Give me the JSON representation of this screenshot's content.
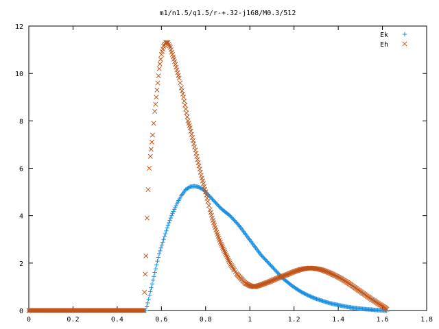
{
  "chart_data": {
    "type": "scatter",
    "title": "m1/n1.5/q1.5/r-+.32-j168/M0.3/512",
    "xlabel": "",
    "ylabel": "",
    "xlim": [
      0,
      1.8
    ],
    "ylim": [
      0,
      12
    ],
    "x_ticks": [
      "0",
      "0.2",
      "0.4",
      "0.6",
      "0.8",
      "1",
      "1.2",
      "1.4",
      "1.6",
      "1.8"
    ],
    "y_ticks": [
      "0",
      "2",
      "4",
      "6",
      "8",
      "10",
      "12"
    ],
    "grid": false,
    "legend_position": "top-right",
    "series": [
      {
        "name": "Ek",
        "marker": "plus",
        "color": "#1a8fe0",
        "points": [
          [
            0.0,
            0
          ],
          [
            0.1,
            0
          ],
          [
            0.2,
            0
          ],
          [
            0.3,
            0
          ],
          [
            0.4,
            0
          ],
          [
            0.5,
            0
          ],
          [
            0.53,
            0
          ],
          [
            0.55,
            0.8
          ],
          [
            0.57,
            1.6
          ],
          [
            0.59,
            2.4
          ],
          [
            0.61,
            3.0
          ],
          [
            0.63,
            3.6
          ],
          [
            0.65,
            4.1
          ],
          [
            0.67,
            4.5
          ],
          [
            0.69,
            4.85
          ],
          [
            0.71,
            5.1
          ],
          [
            0.73,
            5.22
          ],
          [
            0.75,
            5.25
          ],
          [
            0.77,
            5.2
          ],
          [
            0.79,
            5.1
          ],
          [
            0.81,
            4.9
          ],
          [
            0.83,
            4.7
          ],
          [
            0.85,
            4.5
          ],
          [
            0.87,
            4.3
          ],
          [
            0.89,
            4.15
          ],
          [
            0.91,
            4.0
          ],
          [
            0.93,
            3.8
          ],
          [
            0.95,
            3.6
          ],
          [
            0.97,
            3.35
          ],
          [
            0.99,
            3.1
          ],
          [
            1.01,
            2.85
          ],
          [
            1.03,
            2.6
          ],
          [
            1.05,
            2.35
          ],
          [
            1.07,
            2.15
          ],
          [
            1.09,
            1.95
          ],
          [
            1.11,
            1.75
          ],
          [
            1.13,
            1.55
          ],
          [
            1.15,
            1.35
          ],
          [
            1.17,
            1.2
          ],
          [
            1.19,
            1.05
          ],
          [
            1.21,
            0.92
          ],
          [
            1.23,
            0.8
          ],
          [
            1.25,
            0.7
          ],
          [
            1.27,
            0.61
          ],
          [
            1.29,
            0.53
          ],
          [
            1.31,
            0.46
          ],
          [
            1.33,
            0.4
          ],
          [
            1.35,
            0.34
          ],
          [
            1.37,
            0.29
          ],
          [
            1.39,
            0.25
          ],
          [
            1.41,
            0.21
          ],
          [
            1.43,
            0.17
          ],
          [
            1.45,
            0.14
          ],
          [
            1.47,
            0.11
          ],
          [
            1.49,
            0.09
          ],
          [
            1.51,
            0.07
          ],
          [
            1.53,
            0.05
          ],
          [
            1.55,
            0.04
          ],
          [
            1.57,
            0.02
          ],
          [
            1.59,
            0.01
          ],
          [
            1.61,
            0.0
          ],
          [
            1.62,
            0.0
          ]
        ]
      },
      {
        "name": "Eh",
        "marker": "cross",
        "color": "#c0541a",
        "points": [
          [
            0.0,
            0
          ],
          [
            0.1,
            0
          ],
          [
            0.2,
            0
          ],
          [
            0.3,
            0
          ],
          [
            0.4,
            0
          ],
          [
            0.5,
            0
          ],
          [
            0.52,
            0
          ],
          [
            0.53,
            2.3
          ],
          [
            0.535,
            3.9
          ],
          [
            0.54,
            5.1
          ],
          [
            0.545,
            6.0
          ],
          [
            0.55,
            6.5
          ],
          [
            0.56,
            7.4
          ],
          [
            0.57,
            8.4
          ],
          [
            0.58,
            9.3
          ],
          [
            0.59,
            10.2
          ],
          [
            0.6,
            10.8
          ],
          [
            0.61,
            11.15
          ],
          [
            0.62,
            11.3
          ],
          [
            0.63,
            11.3
          ],
          [
            0.64,
            11.1
          ],
          [
            0.65,
            10.8
          ],
          [
            0.66,
            10.5
          ],
          [
            0.67,
            10.15
          ],
          [
            0.68,
            9.8
          ],
          [
            0.69,
            9.4
          ],
          [
            0.7,
            9.0
          ],
          [
            0.71,
            8.5
          ],
          [
            0.72,
            8.0
          ],
          [
            0.73,
            7.7
          ],
          [
            0.74,
            7.3
          ],
          [
            0.75,
            6.9
          ],
          [
            0.76,
            6.5
          ],
          [
            0.77,
            6.1
          ],
          [
            0.78,
            5.7
          ],
          [
            0.79,
            5.35
          ],
          [
            0.8,
            5.0
          ],
          [
            0.81,
            4.6
          ],
          [
            0.82,
            4.25
          ],
          [
            0.83,
            3.9
          ],
          [
            0.84,
            3.6
          ],
          [
            0.85,
            3.3
          ],
          [
            0.86,
            3.05
          ],
          [
            0.87,
            2.8
          ],
          [
            0.88,
            2.6
          ],
          [
            0.89,
            2.4
          ],
          [
            0.9,
            2.2
          ],
          [
            0.91,
            2.0
          ],
          [
            0.92,
            1.85
          ],
          [
            0.93,
            1.7
          ],
          [
            0.94,
            1.55
          ],
          [
            0.95,
            1.45
          ],
          [
            0.96,
            1.35
          ],
          [
            0.97,
            1.25
          ],
          [
            0.98,
            1.15
          ],
          [
            0.99,
            1.1
          ],
          [
            1.0,
            1.05
          ],
          [
            1.01,
            1.02
          ],
          [
            1.02,
            1.0
          ],
          [
            1.03,
            1.02
          ],
          [
            1.05,
            1.08
          ],
          [
            1.07,
            1.15
          ],
          [
            1.09,
            1.22
          ],
          [
            1.11,
            1.3
          ],
          [
            1.13,
            1.38
          ],
          [
            1.15,
            1.45
          ],
          [
            1.17,
            1.52
          ],
          [
            1.19,
            1.6
          ],
          [
            1.21,
            1.67
          ],
          [
            1.23,
            1.73
          ],
          [
            1.25,
            1.77
          ],
          [
            1.27,
            1.79
          ],
          [
            1.29,
            1.78
          ],
          [
            1.31,
            1.75
          ],
          [
            1.33,
            1.7
          ],
          [
            1.35,
            1.63
          ],
          [
            1.37,
            1.55
          ],
          [
            1.39,
            1.46
          ],
          [
            1.41,
            1.36
          ],
          [
            1.43,
            1.25
          ],
          [
            1.45,
            1.13
          ],
          [
            1.47,
            1.0
          ],
          [
            1.49,
            0.87
          ],
          [
            1.51,
            0.74
          ],
          [
            1.53,
            0.61
          ],
          [
            1.55,
            0.48
          ],
          [
            1.57,
            0.36
          ],
          [
            1.59,
            0.24
          ],
          [
            1.61,
            0.13
          ],
          [
            1.62,
            0.05
          ]
        ]
      }
    ]
  }
}
